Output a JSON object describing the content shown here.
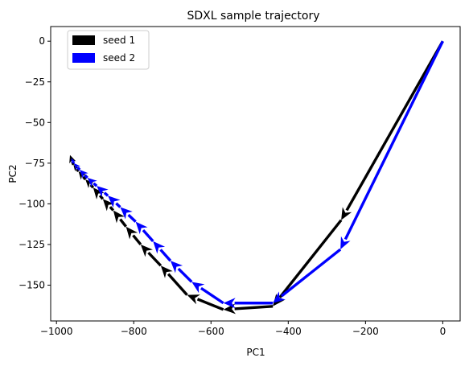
{
  "chart_data": {
    "type": "quiver",
    "title": "SDXL sample trajectory",
    "xlabel": "PC1",
    "ylabel": "PC2",
    "xlim": [
      -1015,
      45
    ],
    "ylim": [
      -172,
      9
    ],
    "xticks": [
      -1000,
      -800,
      -600,
      -400,
      -200,
      0
    ],
    "yticks": [
      0,
      -25,
      -50,
      -75,
      -100,
      -125,
      -150
    ],
    "grid": false,
    "legend_position": "top-left",
    "series": [
      {
        "name": "seed 1",
        "color": "#000000",
        "points": [
          [
            0,
            0
          ],
          [
            -263,
            -110
          ],
          [
            -440,
            -163
          ],
          [
            -568,
            -165
          ],
          [
            -662,
            -156
          ],
          [
            -730,
            -138
          ],
          [
            -782,
            -125
          ],
          [
            -820,
            -114
          ],
          [
            -853,
            -104
          ],
          [
            -880,
            -97
          ],
          [
            -905,
            -90
          ],
          [
            -925,
            -85
          ],
          [
            -943,
            -80
          ],
          [
            -956,
            -76
          ],
          [
            -965,
            -70
          ]
        ]
      },
      {
        "name": "seed 2",
        "color": "#0000ff",
        "points": [
          [
            0,
            0
          ],
          [
            -265,
            -128
          ],
          [
            -440,
            -161
          ],
          [
            -568,
            -161
          ],
          [
            -650,
            -148
          ],
          [
            -705,
            -135
          ],
          [
            -750,
            -123
          ],
          [
            -795,
            -111
          ],
          [
            -835,
            -102
          ],
          [
            -867,
            -95
          ],
          [
            -896,
            -89
          ],
          [
            -920,
            -84
          ],
          [
            -940,
            -79
          ],
          [
            -955,
            -75
          ],
          [
            -962,
            -72
          ]
        ]
      }
    ]
  }
}
